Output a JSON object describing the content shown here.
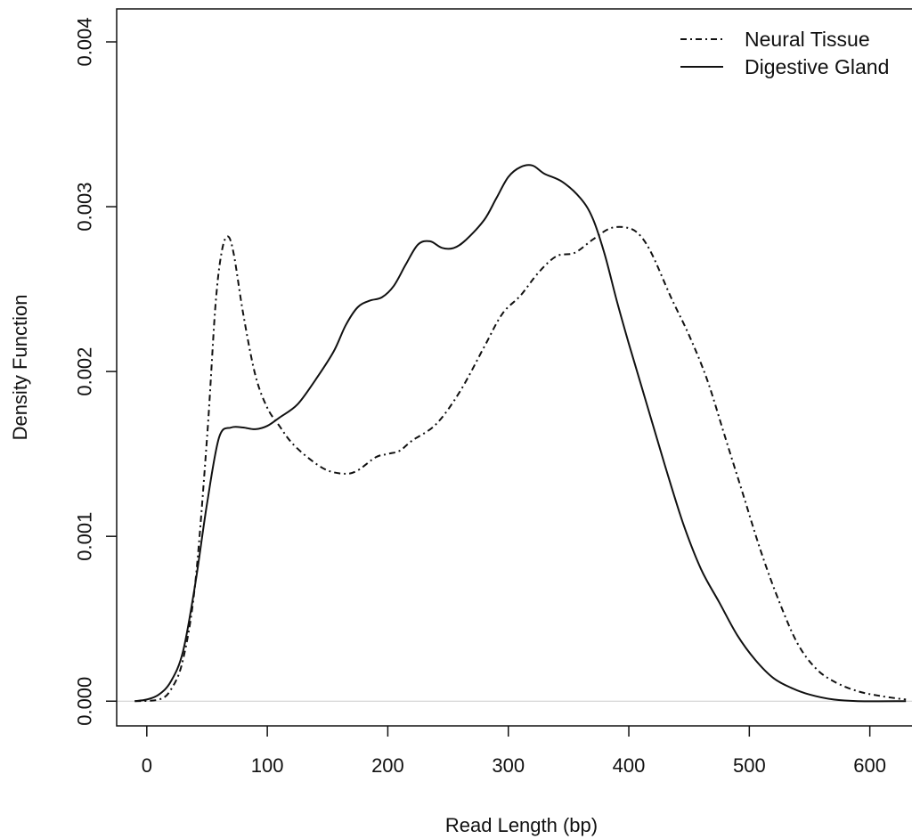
{
  "chart_data": {
    "type": "line",
    "title": "",
    "xlabel": "Read Length (bp)",
    "ylabel": "Density Function",
    "xlim": [
      -25,
      635
    ],
    "ylim": [
      -0.00015,
      0.0042
    ],
    "x_ticks": [
      0,
      100,
      200,
      300,
      400,
      500,
      600
    ],
    "y_ticks": [
      0.0,
      0.001,
      0.002,
      0.003,
      0.004
    ],
    "x_tick_labels": [
      "0",
      "100",
      "200",
      "300",
      "400",
      "500",
      "600"
    ],
    "y_tick_labels": [
      "0.000",
      "0.001",
      "0.002",
      "0.003",
      "0.004"
    ],
    "baseline": 0,
    "legend": {
      "position": "top-right",
      "entries": [
        "Neural Tissue",
        "Digestive Gland"
      ]
    },
    "series": [
      {
        "name": "Neural Tissue",
        "style": "dash-dot",
        "color": "#111111",
        "points": [
          [
            -10,
            0.0
          ],
          [
            10,
            1e-05
          ],
          [
            20,
            7e-05
          ],
          [
            30,
            0.00025
          ],
          [
            40,
            0.0007
          ],
          [
            50,
            0.0016
          ],
          [
            57,
            0.0024
          ],
          [
            62,
            0.00272
          ],
          [
            67,
            0.00282
          ],
          [
            72,
            0.00272
          ],
          [
            80,
            0.00235
          ],
          [
            90,
            0.00198
          ],
          [
            100,
            0.00178
          ],
          [
            110,
            0.00167
          ],
          [
            120,
            0.00157
          ],
          [
            135,
            0.00147
          ],
          [
            150,
            0.0014
          ],
          [
            165,
            0.00138
          ],
          [
            175,
            0.0014
          ],
          [
            190,
            0.00148
          ],
          [
            200,
            0.0015
          ],
          [
            210,
            0.00152
          ],
          [
            220,
            0.00158
          ],
          [
            240,
            0.00168
          ],
          [
            260,
            0.00188
          ],
          [
            280,
            0.00215
          ],
          [
            295,
            0.00235
          ],
          [
            310,
            0.00246
          ],
          [
            325,
            0.0026
          ],
          [
            340,
            0.0027
          ],
          [
            355,
            0.00272
          ],
          [
            370,
            0.0028
          ],
          [
            385,
            0.00287
          ],
          [
            400,
            0.00287
          ],
          [
            410,
            0.00282
          ],
          [
            420,
            0.0027
          ],
          [
            435,
            0.00245
          ],
          [
            450,
            0.00222
          ],
          [
            465,
            0.00195
          ],
          [
            480,
            0.0016
          ],
          [
            495,
            0.00125
          ],
          [
            510,
            0.0009
          ],
          [
            525,
            0.0006
          ],
          [
            540,
            0.00035
          ],
          [
            555,
            0.0002
          ],
          [
            570,
            0.00012
          ],
          [
            590,
            6e-05
          ],
          [
            610,
            3e-05
          ],
          [
            630,
            1e-05
          ]
        ]
      },
      {
        "name": "Digestive Gland",
        "style": "solid",
        "color": "#111111",
        "points": [
          [
            -10,
            0.0
          ],
          [
            0,
            1e-05
          ],
          [
            10,
            4e-05
          ],
          [
            20,
            0.00012
          ],
          [
            30,
            0.0003
          ],
          [
            40,
            0.0007
          ],
          [
            50,
            0.0012
          ],
          [
            60,
            0.0016
          ],
          [
            70,
            0.00166
          ],
          [
            80,
            0.00166
          ],
          [
            90,
            0.00165
          ],
          [
            100,
            0.00167
          ],
          [
            110,
            0.00172
          ],
          [
            125,
            0.0018
          ],
          [
            140,
            0.00195
          ],
          [
            155,
            0.00212
          ],
          [
            165,
            0.00228
          ],
          [
            175,
            0.00239
          ],
          [
            185,
            0.00243
          ],
          [
            195,
            0.00245
          ],
          [
            205,
            0.00252
          ],
          [
            215,
            0.00265
          ],
          [
            225,
            0.00277
          ],
          [
            235,
            0.00279
          ],
          [
            245,
            0.00275
          ],
          [
            255,
            0.00275
          ],
          [
            265,
            0.0028
          ],
          [
            280,
            0.00292
          ],
          [
            290,
            0.00305
          ],
          [
            300,
            0.00318
          ],
          [
            310,
            0.00324
          ],
          [
            320,
            0.00325
          ],
          [
            330,
            0.0032
          ],
          [
            345,
            0.00315
          ],
          [
            360,
            0.00305
          ],
          [
            370,
            0.00293
          ],
          [
            380,
            0.00271
          ],
          [
            390,
            0.00243
          ],
          [
            400,
            0.00217
          ],
          [
            415,
            0.0018
          ],
          [
            430,
            0.00143
          ],
          [
            445,
            0.00108
          ],
          [
            460,
            0.0008
          ],
          [
            475,
            0.0006
          ],
          [
            490,
            0.0004
          ],
          [
            505,
            0.00025
          ],
          [
            520,
            0.00014
          ],
          [
            535,
            8e-05
          ],
          [
            550,
            4e-05
          ],
          [
            570,
            1e-05
          ],
          [
            590,
            0.0
          ],
          [
            630,
            0.0
          ]
        ]
      }
    ]
  }
}
